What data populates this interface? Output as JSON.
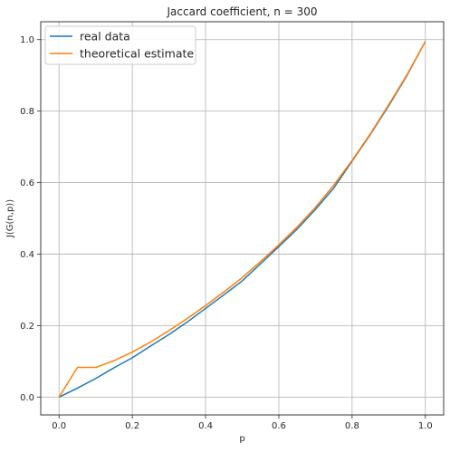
{
  "chart_data": {
    "type": "line",
    "title": "Jaccard coefficient, n = 300",
    "xlabel": "p",
    "ylabel": "J(G(n,p))",
    "xlim": [
      -0.05,
      1.05
    ],
    "ylim": [
      -0.05,
      1.05
    ],
    "xticks": [
      0.0,
      0.2,
      0.4,
      0.6,
      0.8,
      1.0
    ],
    "yticks": [
      0.0,
      0.2,
      0.4,
      0.6,
      0.8,
      1.0
    ],
    "xtick_labels": [
      "0.0",
      "0.2",
      "0.4",
      "0.6",
      "0.8",
      "1.0"
    ],
    "ytick_labels": [
      "0.0",
      "0.2",
      "0.4",
      "0.6",
      "0.8",
      "1.0"
    ],
    "grid": true,
    "legend_position": "top-left",
    "series": [
      {
        "name": "real data",
        "color": "#1f77b4",
        "x": [
          0.0,
          0.05,
          0.1,
          0.15,
          0.2,
          0.25,
          0.3,
          0.35,
          0.4,
          0.45,
          0.5,
          0.55,
          0.6,
          0.65,
          0.7,
          0.75,
          0.8,
          0.85,
          0.9,
          0.95,
          1.0
        ],
        "y": [
          0.0,
          0.025,
          0.052,
          0.082,
          0.11,
          0.143,
          0.175,
          0.21,
          0.248,
          0.286,
          0.325,
          0.373,
          0.421,
          0.47,
          0.525,
          0.585,
          0.66,
          0.735,
          0.815,
          0.9,
          0.995
        ]
      },
      {
        "name": "theoretical estimate",
        "color": "#ff7f0e",
        "x": [
          0.0,
          0.05,
          0.1,
          0.15,
          0.2,
          0.25,
          0.3,
          0.35,
          0.4,
          0.45,
          0.5,
          0.55,
          0.6,
          0.65,
          0.7,
          0.75,
          0.8,
          0.85,
          0.9,
          0.95,
          1.0
        ],
        "y": [
          0.0,
          0.083,
          0.083,
          0.102,
          0.126,
          0.154,
          0.186,
          0.22,
          0.256,
          0.294,
          0.334,
          0.379,
          0.426,
          0.476,
          0.531,
          0.593,
          0.662,
          0.737,
          0.818,
          0.902,
          0.995
        ]
      }
    ]
  }
}
